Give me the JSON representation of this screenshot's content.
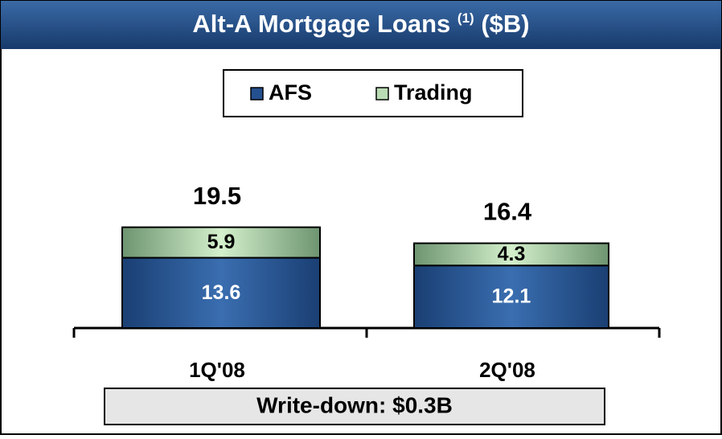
{
  "chart_data": {
    "type": "bar",
    "stacked": true,
    "title": "Alt-A Mortgage Loans",
    "title_note": "(1)",
    "title_unit": "($B)",
    "categories": [
      "1Q'08",
      "2Q'08"
    ],
    "series": [
      {
        "name": "AFS",
        "color": "#24508f",
        "values": [
          13.6,
          12.1
        ]
      },
      {
        "name": "Trading",
        "color": "#b9dcb4",
        "values": [
          5.9,
          4.3
        ]
      }
    ],
    "totals": [
      19.5,
      16.4
    ],
    "annotation": "Write-down: $0.3B"
  }
}
